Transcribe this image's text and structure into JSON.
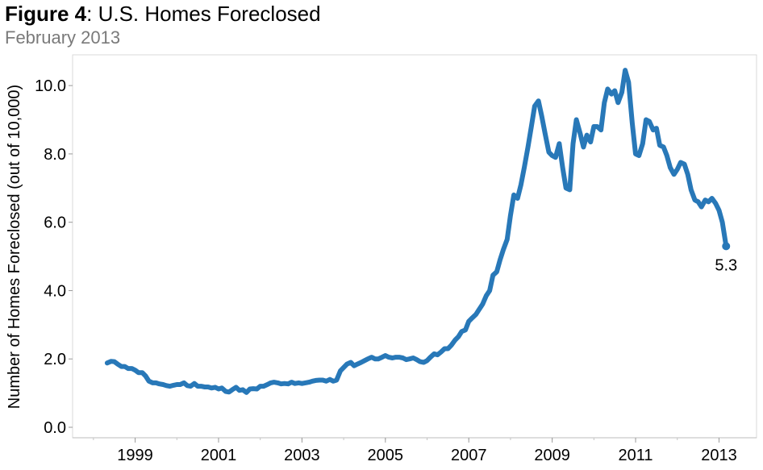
{
  "header": {
    "title_bold": "Figure 4",
    "title_rest": ": U.S. Homes Foreclosed",
    "subtitle": "February 2013"
  },
  "chart_data": {
    "type": "line",
    "title": "Figure 4: U.S. Homes Foreclosed",
    "subtitle": "February 2013",
    "xlabel": "",
    "ylabel": "Number of Homes Foreclosed (out of 10,000)",
    "xlim": [
      1997.5,
      2013.9
    ],
    "ylim": [
      0,
      10.9
    ],
    "x_ticks": [
      1999,
      2001,
      2003,
      2005,
      2007,
      2009,
      2011,
      2013
    ],
    "x_tick_labels": [
      "1999",
      "2001",
      "2003",
      "2005",
      "2007",
      "2009",
      "2011",
      "2013"
    ],
    "y_ticks": [
      0,
      2,
      4,
      6,
      8,
      10
    ],
    "y_tick_labels": [
      "0.0",
      "2.0",
      "4.0",
      "6.0",
      "8.0",
      "10.0"
    ],
    "grid": false,
    "line_color": "#2878b8",
    "end_label": "5.3",
    "series": [
      {
        "x": [
          1998.33,
          1998.42,
          1998.5,
          1998.58,
          1998.67,
          1998.75,
          1998.83,
          1998.92,
          1999.0,
          1999.08,
          1999.17,
          1999.25,
          1999.33,
          1999.42,
          1999.5,
          1999.58,
          1999.67,
          1999.75,
          1999.83,
          1999.92,
          2000.0,
          2000.08,
          2000.17,
          2000.25,
          2000.33,
          2000.42,
          2000.5,
          2000.58,
          2000.67,
          2000.75,
          2000.83,
          2000.92,
          2001.0,
          2001.08,
          2001.17,
          2001.25,
          2001.33,
          2001.42,
          2001.5,
          2001.58,
          2001.67,
          2001.75,
          2001.83,
          2001.92,
          2002.0,
          2002.08,
          2002.17,
          2002.25,
          2002.33,
          2002.42,
          2002.5,
          2002.58,
          2002.67,
          2002.75,
          2002.83,
          2002.92,
          2003.0,
          2003.08,
          2003.17,
          2003.25,
          2003.33,
          2003.42,
          2003.5,
          2003.58,
          2003.67,
          2003.75,
          2003.83,
          2003.92,
          2004.0,
          2004.08,
          2004.17,
          2004.25,
          2004.33,
          2004.42,
          2004.5,
          2004.58,
          2004.67,
          2004.75,
          2004.83,
          2004.92,
          2005.0,
          2005.08,
          2005.17,
          2005.25,
          2005.33,
          2005.42,
          2005.5,
          2005.58,
          2005.67,
          2005.75,
          2005.83,
          2005.92,
          2006.0,
          2006.08,
          2006.17,
          2006.25,
          2006.33,
          2006.42,
          2006.5,
          2006.58,
          2006.67,
          2006.75,
          2006.83,
          2006.92,
          2007.0,
          2007.08,
          2007.17,
          2007.25,
          2007.33,
          2007.42,
          2007.5,
          2007.58,
          2007.67,
          2007.75,
          2007.83,
          2007.92,
          2008.0,
          2008.08,
          2008.17,
          2008.25,
          2008.33,
          2008.42,
          2008.5,
          2008.58,
          2008.67,
          2008.75,
          2008.83,
          2008.92,
          2009.0,
          2009.08,
          2009.17,
          2009.25,
          2009.33,
          2009.42,
          2009.5,
          2009.58,
          2009.67,
          2009.75,
          2009.83,
          2009.92,
          2010.0,
          2010.08,
          2010.17,
          2010.25,
          2010.33,
          2010.42,
          2010.5,
          2010.58,
          2010.67,
          2010.75,
          2010.83,
          2010.92,
          2011.0,
          2011.08,
          2011.17,
          2011.25,
          2011.33,
          2011.42,
          2011.5,
          2011.58,
          2011.67,
          2011.75,
          2011.83,
          2011.92,
          2012.0,
          2012.08,
          2012.17,
          2012.25,
          2012.33,
          2012.42,
          2012.5,
          2012.58,
          2012.67,
          2012.75,
          2012.83,
          2012.92,
          2013.0,
          2013.08,
          2013.17
        ],
        "values": [
          1.88,
          1.93,
          1.92,
          1.85,
          1.78,
          1.78,
          1.72,
          1.72,
          1.67,
          1.6,
          1.6,
          1.5,
          1.35,
          1.3,
          1.3,
          1.27,
          1.25,
          1.22,
          1.2,
          1.23,
          1.25,
          1.25,
          1.3,
          1.22,
          1.2,
          1.28,
          1.2,
          1.2,
          1.18,
          1.18,
          1.15,
          1.17,
          1.12,
          1.15,
          1.05,
          1.03,
          1.1,
          1.17,
          1.08,
          1.1,
          1.02,
          1.12,
          1.13,
          1.12,
          1.2,
          1.2,
          1.25,
          1.3,
          1.32,
          1.3,
          1.27,
          1.28,
          1.27,
          1.32,
          1.28,
          1.3,
          1.28,
          1.3,
          1.32,
          1.35,
          1.37,
          1.38,
          1.38,
          1.35,
          1.4,
          1.35,
          1.38,
          1.65,
          1.75,
          1.85,
          1.9,
          1.8,
          1.85,
          1.9,
          1.95,
          2.0,
          2.05,
          2.0,
          2.0,
          2.05,
          2.1,
          2.05,
          2.03,
          2.05,
          2.05,
          2.03,
          1.98,
          2.0,
          2.03,
          1.98,
          1.92,
          1.9,
          1.95,
          2.05,
          2.15,
          2.12,
          2.2,
          2.3,
          2.3,
          2.4,
          2.55,
          2.65,
          2.8,
          2.85,
          3.1,
          3.2,
          3.3,
          3.45,
          3.6,
          3.85,
          4.0,
          4.45,
          4.55,
          4.9,
          5.2,
          5.5,
          6.2,
          6.8,
          6.7,
          7.1,
          7.6,
          8.2,
          8.8,
          9.4,
          9.55,
          9.1,
          8.6,
          8.05,
          7.95,
          7.9,
          8.3,
          7.6,
          7.0,
          6.95,
          8.3,
          9.0,
          8.6,
          8.2,
          8.55,
          8.35,
          8.8,
          8.8,
          8.7,
          9.5,
          9.9,
          9.75,
          9.85,
          9.5,
          9.8,
          10.45,
          10.1,
          8.9,
          8.0,
          7.95,
          8.3,
          9.0,
          8.95,
          8.7,
          8.75,
          8.25,
          8.2,
          7.95,
          7.6,
          7.4,
          7.55,
          7.75,
          7.7,
          7.4,
          6.95,
          6.65,
          6.6,
          6.45,
          6.65,
          6.6,
          6.7,
          6.55,
          6.35,
          6.0,
          5.3
        ]
      }
    ]
  }
}
